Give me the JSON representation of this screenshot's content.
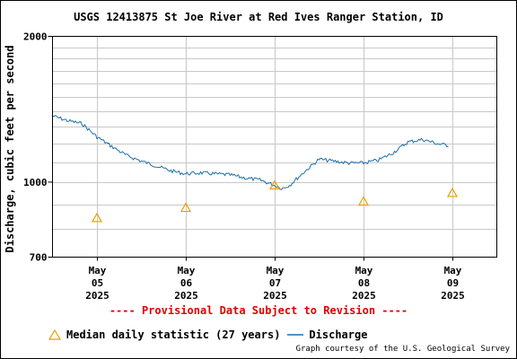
{
  "chart_data": {
    "type": "line",
    "title": "USGS 12413875 St Joe River at Red Ives Ranger Station, ID",
    "ylabel": "Discharge, cubic feet per second",
    "yscale": "log",
    "ylim": [
      700,
      2000
    ],
    "yticks": [
      700,
      1000,
      2000
    ],
    "ytick_labels": [
      "700",
      "1000",
      "2000"
    ],
    "xlim": [
      "2025-05-04T12:00",
      "2025-05-09T12:00"
    ],
    "xticks": [
      {
        "label": [
          "May",
          "05",
          "2025"
        ],
        "x": "2025-05-05T00:00"
      },
      {
        "label": [
          "May",
          "06",
          "2025"
        ],
        "x": "2025-05-06T00:00"
      },
      {
        "label": [
          "May",
          "07",
          "2025"
        ],
        "x": "2025-05-07T00:00"
      },
      {
        "label": [
          "May",
          "08",
          "2025"
        ],
        "x": "2025-05-08T00:00"
      },
      {
        "label": [
          "May",
          "09",
          "2025"
        ],
        "x": "2025-05-09T00:00"
      }
    ],
    "series": [
      {
        "name": "Discharge",
        "color": "#1f6fa8",
        "x": [
          "2025-05-04T12:00",
          "2025-05-04T16:00",
          "2025-05-04T20:00",
          "2025-05-05T00:00",
          "2025-05-05T04:00",
          "2025-05-05T08:00",
          "2025-05-05T12:00",
          "2025-05-05T16:00",
          "2025-05-05T20:00",
          "2025-05-06T00:00",
          "2025-05-06T04:00",
          "2025-05-06T08:00",
          "2025-05-06T12:00",
          "2025-05-06T16:00",
          "2025-05-06T20:00",
          "2025-05-07T00:00",
          "2025-05-07T02:00",
          "2025-05-07T04:00",
          "2025-05-07T08:00",
          "2025-05-07T12:00",
          "2025-05-07T16:00",
          "2025-05-07T20:00",
          "2025-05-08T00:00",
          "2025-05-08T04:00",
          "2025-05-08T08:00",
          "2025-05-08T12:00",
          "2025-05-08T16:00",
          "2025-05-08T20:00",
          "2025-05-08T23:00"
        ],
        "values": [
          1370,
          1340,
          1320,
          1240,
          1185,
          1135,
          1105,
          1080,
          1055,
          1040,
          1045,
          1040,
          1035,
          1020,
          1010,
          985,
          970,
          985,
          1050,
          1115,
          1105,
          1095,
          1095,
          1110,
          1150,
          1210,
          1225,
          1200,
          1190
        ]
      },
      {
        "name": "Median daily statistic (27 years)",
        "marker": "triangle",
        "color": "#e8a000",
        "x": [
          "2025-05-05T00:00",
          "2025-05-06T00:00",
          "2025-05-07T00:00",
          "2025-05-08T00:00",
          "2025-05-09T00:00"
        ],
        "values": [
          843,
          885,
          985,
          912,
          950
        ]
      }
    ],
    "grid": true,
    "legend_position": "bottom"
  },
  "notice": "---- Provisional Data Subject to Revision ----",
  "legend": {
    "median_label": "Median daily statistic (27 years)",
    "discharge_label": "Discharge"
  },
  "credit": "Graph courtesy of the U.S. Geological Survey"
}
